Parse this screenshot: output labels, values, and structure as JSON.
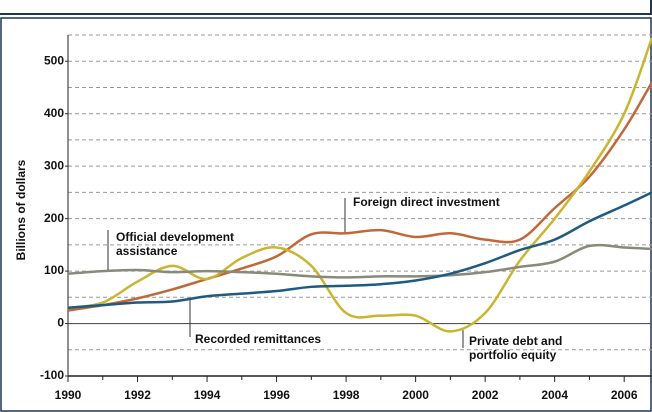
{
  "chart_data": {
    "type": "line",
    "y_label": "Billions of dollars",
    "x": [
      1990,
      1991,
      1992,
      1993,
      1994,
      1995,
      1996,
      1997,
      1998,
      1999,
      2000,
      2001,
      2002,
      2003,
      2004,
      2005,
      2006,
      2006.8
    ],
    "series": [
      {
        "name": "Foreign direct investment",
        "color": "#c0683a",
        "values": [
          25,
          35,
          48,
          65,
          85,
          105,
          128,
          170,
          172,
          178,
          165,
          172,
          160,
          160,
          220,
          280,
          370,
          460
        ]
      },
      {
        "name": "Private debt and portfolio equity",
        "color": "#c9b530",
        "values": [
          30,
          40,
          80,
          110,
          85,
          125,
          145,
          110,
          20,
          15,
          15,
          -15,
          20,
          120,
          200,
          290,
          400,
          545
        ]
      },
      {
        "name": "Official development assistance",
        "color": "#8a8a7a",
        "values": [
          95,
          100,
          102,
          98,
          100,
          98,
          95,
          90,
          88,
          90,
          90,
          92,
          98,
          108,
          118,
          148,
          145,
          142
        ]
      },
      {
        "name": "Recorded remittances",
        "color": "#1e5a82",
        "values": [
          30,
          35,
          40,
          42,
          52,
          57,
          62,
          70,
          72,
          75,
          82,
          95,
          115,
          140,
          160,
          195,
          225,
          250
        ]
      }
    ],
    "annotations": [
      {
        "lines": [
          "Foreign direct investment"
        ]
      },
      {
        "lines": [
          "Private debt and",
          "portfolio equity"
        ]
      },
      {
        "lines": [
          "Official development",
          "assistance"
        ]
      },
      {
        "lines": [
          "Recorded remittances"
        ]
      }
    ],
    "xlim": [
      1990,
      2006.8
    ],
    "ylim": [
      -100,
      550
    ],
    "xticks": [
      1990,
      1992,
      1994,
      1996,
      1998,
      2000,
      2002,
      2004,
      2006
    ],
    "x_minor_ticks": [
      1991,
      1993,
      1995,
      1997,
      1999,
      2001,
      2003,
      2005
    ],
    "yticks": [
      -100,
      0,
      100,
      200,
      300,
      400,
      500
    ],
    "grid_yticks": [
      -50,
      50,
      100,
      150,
      200,
      250,
      300,
      350,
      400,
      450,
      500,
      550
    ],
    "grid": true
  }
}
